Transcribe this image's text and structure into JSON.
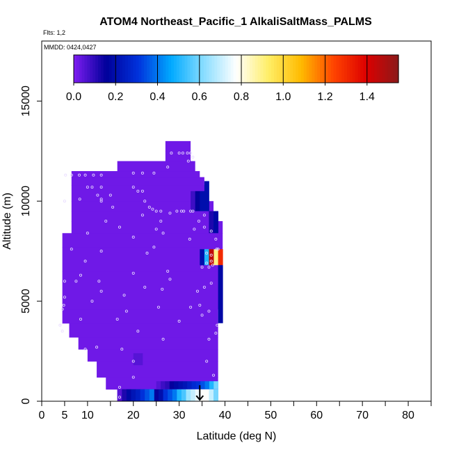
{
  "chart_data": {
    "type": "heatmap",
    "title": "ATOM4 Northeast_Pacific_1 AlkaliSaltMass_PALMS",
    "subtitle_flights": "Flts: 1,2",
    "subtitle_dates": "MMDD: 0424,0427",
    "xlabel": "Latitude (deg N)",
    "ylabel": "Altitude (m)",
    "xlim": [
      0,
      85
    ],
    "ylim": [
      0,
      18000
    ],
    "x_ticks": [
      0,
      5,
      10,
      20,
      30,
      40,
      50,
      60,
      70,
      80
    ],
    "x_minor_ticks": [
      15,
      25,
      35,
      45,
      55,
      65,
      75,
      85
    ],
    "y_ticks": [
      0,
      5000,
      10000,
      15000
    ],
    "colorbar": {
      "min": 0.0,
      "max": 1.55,
      "ticks": [
        0.0,
        0.2,
        0.4,
        0.6,
        0.8,
        1.0,
        1.2,
        1.4
      ],
      "tick_labels": [
        "0.0",
        "0.2",
        "0.4",
        "0.6",
        "0.8",
        "1.0",
        "1.2",
        "1.4"
      ],
      "colors": [
        "#7f1df2",
        "#00009a",
        "#0033dd",
        "#00aaff",
        "#88ddff",
        "#ffffff",
        "#ffee66",
        "#ffbb00",
        "#ff4400",
        "#dd0000",
        "#8b1a1a"
      ]
    },
    "background_value": 0.02,
    "coverage": [
      [
        16.5,
        0,
        38.5
      ],
      [
        14,
        600,
        38.5
      ],
      [
        12,
        1200,
        38.5
      ],
      [
        10,
        2000,
        38.5
      ],
      [
        8,
        2600,
        38.5
      ],
      [
        6,
        3200,
        38.5
      ],
      [
        4.5,
        3900,
        38.5
      ],
      [
        4.5,
        4600,
        39.5
      ],
      [
        4.5,
        6500,
        39.5
      ],
      [
        4.5,
        7700,
        39.5
      ],
      [
        6.5,
        8400,
        39.5
      ],
      [
        6.5,
        9000,
        38.5
      ],
      [
        6.5,
        9500,
        37.5
      ],
      [
        6.5,
        10000,
        36.5
      ],
      [
        6.5,
        10800,
        35.5
      ],
      [
        6.5,
        11200,
        34.5
      ],
      [
        16.5,
        11500,
        33.5
      ],
      [
        27,
        12000,
        32.5
      ],
      [
        27,
        12500,
        32.5
      ]
    ],
    "anomalies": [
      {
        "x0": 24.5,
        "x1": 38.5,
        "y0": 0,
        "y1": 600,
        "values": [
          0.15,
          0.2,
          0.3,
          0.35,
          0.4,
          0.5,
          0.55,
          0.65,
          0.7,
          0.75,
          0.78,
          0.78,
          0.7,
          0.6
        ]
      },
      {
        "x0": 16.5,
        "x1": 24.5,
        "y0": 0,
        "y1": 600,
        "values": [
          0.05,
          0.12,
          0.18,
          0.22,
          0.25,
          0.3,
          0.35,
          0.4
        ]
      },
      {
        "x0": 25,
        "x1": 38.5,
        "y0": 600,
        "y1": 1000,
        "values": [
          0.05,
          0.08,
          0.1,
          0.15,
          0.18,
          0.2,
          0.22,
          0.25,
          0.28,
          0.3,
          0.35,
          0.4,
          0.5,
          0.6
        ]
      },
      {
        "x0": 37.5,
        "x1": 39.5,
        "y0": 6800,
        "y1": 7600,
        "values": [
          0.9,
          1.3
        ]
      },
      {
        "x0": 34.5,
        "x1": 37.5,
        "y0": 6800,
        "y1": 7600,
        "values": [
          0.2,
          0.5,
          1.45
        ]
      },
      {
        "x0": 38.5,
        "x1": 39.5,
        "y0": 3900,
        "y1": 6800,
        "values": [
          0.18
        ]
      },
      {
        "x0": 32.5,
        "x1": 35.5,
        "y0": 9500,
        "y1": 10500,
        "values": [
          0.08,
          0.15,
          0.2
        ]
      },
      {
        "x0": 35.5,
        "x1": 36.5,
        "y0": 9500,
        "y1": 11000,
        "values": [
          0.2
        ]
      },
      {
        "x0": 36.5,
        "x1": 38.5,
        "y0": 8400,
        "y1": 9500,
        "values": [
          0.12,
          0.18
        ]
      },
      {
        "x0": 20,
        "x1": 22,
        "y0": 1800,
        "y1": 2400,
        "values": [
          0.05,
          0.05
        ]
      }
    ],
    "points": [
      [
        5.2,
        11300
      ],
      [
        6.5,
        11300
      ],
      [
        8.2,
        11300
      ],
      [
        9.5,
        11300
      ],
      [
        11.3,
        11300
      ],
      [
        13,
        11300
      ],
      [
        10,
        10700
      ],
      [
        11,
        10700
      ],
      [
        13,
        10700
      ],
      [
        12.2,
        10300
      ],
      [
        5,
        10000
      ],
      [
        8.3,
        10100
      ],
      [
        13,
        10100
      ],
      [
        10,
        8400
      ],
      [
        6.5,
        7600
      ],
      [
        9.5,
        7000
      ],
      [
        8.5,
        6300
      ],
      [
        5,
        6000
      ],
      [
        7.5,
        6000
      ],
      [
        5,
        5200
      ],
      [
        4.5,
        4600
      ],
      [
        4.8,
        4800
      ],
      [
        4,
        3800
      ],
      [
        4.5,
        3500
      ],
      [
        8.5,
        4100
      ],
      [
        11,
        5000
      ],
      [
        12,
        2700
      ],
      [
        9.5,
        2600
      ],
      [
        13,
        5500
      ],
      [
        12.5,
        6000
      ],
      [
        13,
        7500
      ],
      [
        13,
        10000
      ],
      [
        15,
        10300
      ],
      [
        14,
        9000
      ],
      [
        15.5,
        9700
      ],
      [
        17,
        8700
      ],
      [
        20,
        11400
      ],
      [
        22,
        11400
      ],
      [
        24.5,
        11400
      ],
      [
        27.5,
        11700
      ],
      [
        28.3,
        12400
      ],
      [
        30,
        12400
      ],
      [
        30.8,
        12400
      ],
      [
        31.8,
        12400
      ],
      [
        32.5,
        12400
      ],
      [
        33,
        12200
      ],
      [
        32,
        12000
      ],
      [
        20,
        10700
      ],
      [
        21,
        10500
      ],
      [
        22,
        10500
      ],
      [
        22.5,
        10000
      ],
      [
        23.5,
        9700
      ],
      [
        24.2,
        9600
      ],
      [
        25,
        9500
      ],
      [
        26,
        9500
      ],
      [
        28,
        9400
      ],
      [
        29.5,
        9500
      ],
      [
        30.5,
        9500
      ],
      [
        31,
        9500
      ],
      [
        32.5,
        9500
      ],
      [
        33,
        9500
      ],
      [
        26,
        9000
      ],
      [
        26.5,
        8400
      ],
      [
        25,
        8600
      ],
      [
        22,
        9300
      ],
      [
        20,
        8200
      ],
      [
        24.5,
        7700
      ],
      [
        23,
        7400
      ],
      [
        22.5,
        5700
      ],
      [
        20,
        6400
      ],
      [
        21,
        3500
      ],
      [
        20,
        2000
      ],
      [
        18.5,
        4500
      ],
      [
        18,
        5300
      ],
      [
        16.5,
        4100
      ],
      [
        17.5,
        2600
      ],
      [
        25.5,
        4700
      ],
      [
        26.3,
        5600
      ],
      [
        28,
        6100
      ],
      [
        27.5,
        6500
      ],
      [
        26.5,
        3100
      ],
      [
        30,
        4000
      ],
      [
        32.5,
        4700
      ],
      [
        34.5,
        4800
      ],
      [
        34,
        5500
      ],
      [
        35.5,
        5700
      ],
      [
        37,
        5900
      ],
      [
        36.5,
        6700
      ],
      [
        37,
        7300
      ],
      [
        35,
        6700
      ],
      [
        32.3,
        8100
      ],
      [
        33.3,
        8600
      ],
      [
        34.3,
        9000
      ],
      [
        35.5,
        9300
      ],
      [
        37,
        8500
      ],
      [
        38,
        8100
      ],
      [
        38.5,
        7600
      ],
      [
        35,
        4300
      ],
      [
        36.5,
        4500
      ],
      [
        38.3,
        3800
      ],
      [
        38,
        3400
      ],
      [
        36.5,
        3100
      ],
      [
        36,
        2000
      ],
      [
        37.5,
        1300
      ],
      [
        17,
        200
      ],
      [
        17,
        700
      ],
      [
        20,
        1200
      ],
      [
        37,
        7000
      ],
      [
        36,
        7400
      ],
      [
        38.2,
        7600
      ],
      [
        37.3,
        6800
      ],
      [
        36,
        6900
      ],
      [
        35.5,
        8700
      ]
    ],
    "annotation_arrow": {
      "x": 34.5,
      "y_top": 800,
      "y_bottom": 0
    }
  }
}
